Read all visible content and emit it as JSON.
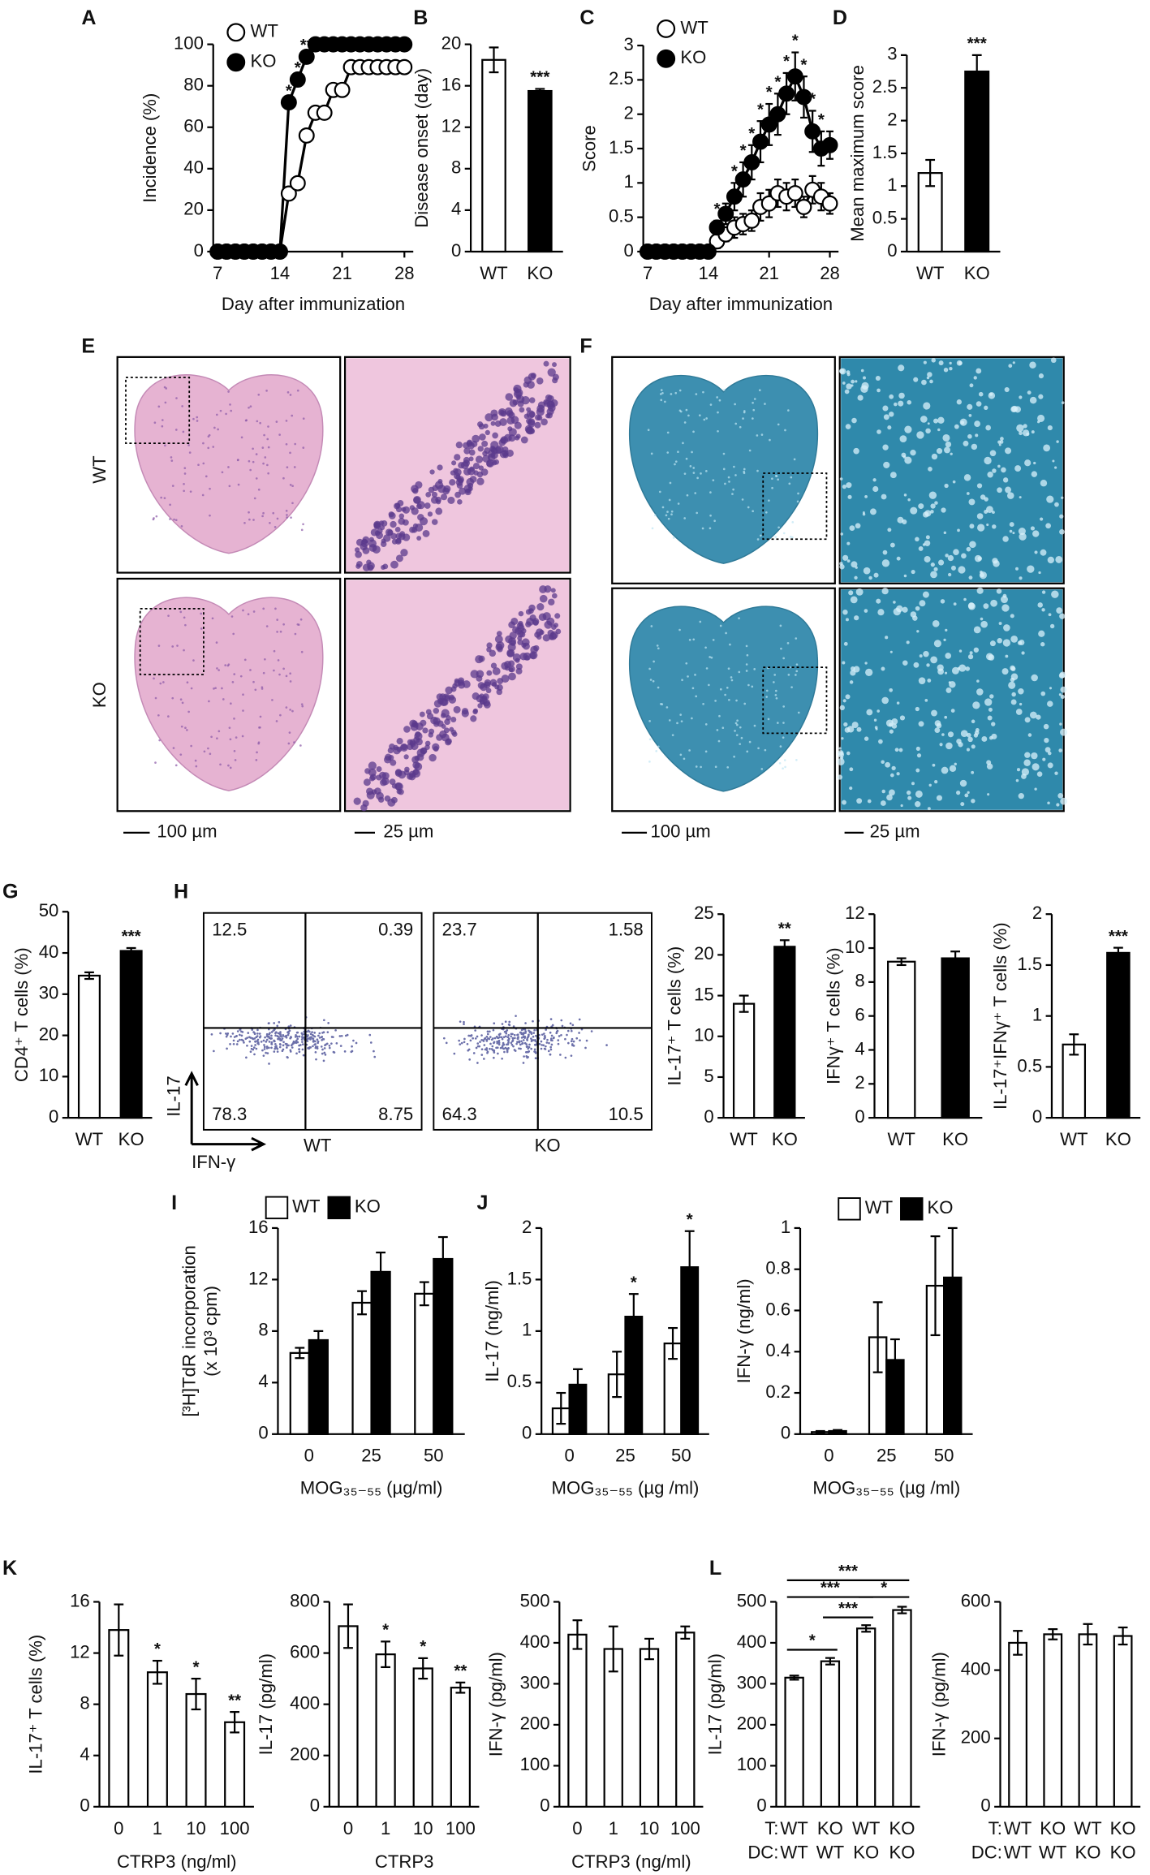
{
  "chart_data": [
    {
      "type": "line",
      "panel": "A",
      "ylabel": "Incidence (%)",
      "xlabel": "Day after immunization",
      "x": [
        7,
        8,
        9,
        10,
        11,
        12,
        13,
        14,
        15,
        16,
        17,
        18,
        19,
        20,
        21,
        22,
        23,
        24,
        25,
        26,
        27,
        28
      ],
      "xlim": [
        6.5,
        29
      ],
      "xticks": [
        7,
        14,
        21,
        28
      ],
      "ylim": [
        0,
        100
      ],
      "yticks": [
        0,
        20,
        40,
        60,
        80,
        100
      ],
      "series": [
        {
          "name": "WT",
          "color": "#ffffff",
          "values": [
            0,
            0,
            0,
            0,
            0,
            0,
            0,
            0,
            28,
            33,
            56,
            67,
            67,
            78,
            78,
            89,
            89,
            89,
            89,
            89,
            89,
            89
          ]
        },
        {
          "name": "KO",
          "color": "#000000",
          "values": [
            0,
            0,
            0,
            0,
            0,
            0,
            0,
            0,
            72,
            83,
            94,
            100,
            100,
            100,
            100,
            100,
            100,
            100,
            100,
            100,
            100,
            100
          ],
          "significance": [
            null,
            null,
            null,
            null,
            null,
            null,
            null,
            null,
            "*",
            "*",
            "**",
            null,
            null,
            null,
            null,
            null,
            null,
            null,
            null,
            null,
            null,
            null
          ]
        }
      ]
    },
    {
      "type": "bar",
      "panel": "B",
      "ylabel": "Disease onset (day)",
      "categories": [
        "WT",
        "KO"
      ],
      "values": [
        18.5,
        15.5
      ],
      "errors": [
        1.2,
        0.2
      ],
      "colors": [
        "#ffffff",
        "#000000"
      ],
      "significance": [
        null,
        "***"
      ],
      "ylim": [
        0,
        20
      ],
      "yticks": [
        0,
        4,
        8,
        12,
        16,
        20
      ]
    },
    {
      "type": "line",
      "panel": "C",
      "ylabel": "Score",
      "xlabel": "Day after immunization",
      "x": [
        7,
        8,
        9,
        10,
        11,
        12,
        13,
        14,
        15,
        16,
        17,
        18,
        19,
        20,
        21,
        22,
        23,
        24,
        25,
        26,
        27,
        28
      ],
      "xlim": [
        6.5,
        29
      ],
      "xticks": [
        7,
        14,
        21,
        28
      ],
      "ylim": [
        0,
        3
      ],
      "yticks": [
        0,
        0.5,
        1,
        1.5,
        2,
        2.5,
        3
      ],
      "series": [
        {
          "name": "WT",
          "color": "#ffffff",
          "values": [
            0,
            0,
            0,
            0,
            0,
            0,
            0,
            0,
            0.15,
            0.25,
            0.35,
            0.4,
            0.45,
            0.65,
            0.7,
            0.85,
            0.8,
            0.85,
            0.65,
            0.9,
            0.8,
            0.7
          ],
          "errors": [
            0,
            0,
            0,
            0,
            0,
            0,
            0,
            0,
            0.1,
            0.1,
            0.15,
            0.15,
            0.15,
            0.2,
            0.2,
            0.2,
            0.2,
            0.2,
            0.15,
            0.2,
            0.2,
            0.15
          ]
        },
        {
          "name": "KO",
          "color": "#000000",
          "values": [
            0,
            0,
            0,
            0,
            0,
            0,
            0,
            0,
            0.35,
            0.55,
            0.8,
            1.05,
            1.3,
            1.6,
            1.85,
            2,
            2.3,
            2.55,
            2.25,
            1.75,
            1.5,
            1.55
          ],
          "errors": [
            0,
            0,
            0,
            0,
            0,
            0,
            0,
            0,
            0.1,
            0.15,
            0.2,
            0.25,
            0.25,
            0.3,
            0.3,
            0.3,
            0.3,
            0.35,
            0.3,
            0.3,
            0.25,
            0.2
          ],
          "significance": [
            null,
            null,
            null,
            null,
            null,
            null,
            null,
            null,
            "*",
            null,
            "*",
            "*",
            "*",
            "*",
            "*",
            "*",
            "*",
            "*",
            "*",
            "*",
            "*",
            null
          ]
        }
      ]
    },
    {
      "type": "bar",
      "panel": "D",
      "ylabel": "Mean maximum score",
      "categories": [
        "WT",
        "KO"
      ],
      "values": [
        1.2,
        2.75
      ],
      "errors": [
        0.2,
        0.25
      ],
      "colors": [
        "#ffffff",
        "#000000"
      ],
      "significance": [
        null,
        "***"
      ],
      "ylim": [
        0,
        3
      ],
      "yticks": [
        0,
        0.5,
        1,
        1.5,
        2,
        2.5,
        3
      ]
    },
    {
      "type": "bar",
      "panel": "G",
      "ylabel": "CD4⁺ T cells (%)",
      "categories": [
        "WT",
        "KO"
      ],
      "values": [
        34.5,
        40.5
      ],
      "errors": [
        0.8,
        0.7
      ],
      "colors": [
        "#ffffff",
        "#000000"
      ],
      "significance": [
        null,
        "***"
      ],
      "ylim": [
        0,
        50
      ],
      "yticks": [
        0,
        10,
        20,
        30,
        40,
        50
      ]
    },
    {
      "type": "bar",
      "ylabel": "IL-17⁺ T cells (%)",
      "categories": [
        "WT",
        "KO"
      ],
      "values": [
        14,
        21
      ],
      "errors": [
        1,
        0.8
      ],
      "colors": [
        "#ffffff",
        "#000000"
      ],
      "significance": [
        null,
        "**"
      ],
      "ylim": [
        0,
        25
      ],
      "yticks": [
        0,
        5,
        10,
        15,
        20,
        25
      ]
    },
    {
      "type": "bar",
      "ylabel": "IFNγ⁺ T cells (%)",
      "categories": [
        "WT",
        "KO"
      ],
      "values": [
        9.2,
        9.4
      ],
      "errors": [
        0.2,
        0.4
      ],
      "colors": [
        "#ffffff",
        "#000000"
      ],
      "ylim": [
        0,
        12
      ],
      "yticks": [
        0,
        2,
        4,
        6,
        8,
        10,
        12
      ]
    },
    {
      "type": "bar",
      "ylabel": "IL-17⁺IFNγ⁺ T cells (%)",
      "categories": [
        "WT",
        "KO"
      ],
      "values": [
        0.72,
        1.62
      ],
      "errors": [
        0.1,
        0.05
      ],
      "colors": [
        "#ffffff",
        "#000000"
      ],
      "significance": [
        null,
        "***"
      ],
      "ylim": [
        0,
        2
      ],
      "yticks": [
        0,
        0.5,
        1,
        1.5,
        2
      ]
    },
    {
      "type": "bar",
      "panel": "I",
      "ylabel": [
        "[³H]TdR incorporation",
        "(x 10³ cpm)"
      ],
      "xlabel": "MOG₃₅₋₅₅ (µg/ml)",
      "categories": [
        "0",
        "25",
        "50"
      ],
      "ylim": [
        0,
        16
      ],
      "yticks": [
        0,
        4,
        8,
        12,
        16
      ],
      "series": [
        {
          "name": "WT",
          "color": "#ffffff",
          "values": [
            6.3,
            10.2,
            10.9
          ],
          "errors": [
            0.4,
            0.9,
            0.9
          ]
        },
        {
          "name": "KO",
          "color": "#000000",
          "values": [
            7.3,
            12.6,
            13.6
          ],
          "errors": [
            0.7,
            1.5,
            1.7
          ]
        }
      ]
    },
    {
      "type": "bar",
      "panel": "J",
      "ylabel": "IL-17 (ng/ml)",
      "xlabel": "MOG₃₅₋₅₅ (µg /ml)",
      "categories": [
        "0",
        "25",
        "50"
      ],
      "ylim": [
        0,
        2
      ],
      "yticks": [
        0,
        0.5,
        1,
        1.5,
        2
      ],
      "series": [
        {
          "name": "WT",
          "color": "#ffffff",
          "values": [
            0.25,
            0.58,
            0.88
          ],
          "errors": [
            0.15,
            0.22,
            0.15
          ]
        },
        {
          "name": "KO",
          "color": "#000000",
          "values": [
            0.48,
            1.14,
            1.62
          ],
          "errors": [
            0.15,
            0.22,
            0.35
          ],
          "significance": [
            null,
            "*",
            "*"
          ]
        }
      ]
    },
    {
      "type": "bar",
      "ylabel": "IFN-γ (ng/ml)",
      "xlabel": "MOG₃₅₋₅₅ (µg /ml)",
      "categories": [
        "0",
        "25",
        "50"
      ],
      "ylim": [
        0,
        1
      ],
      "yticks": [
        0,
        0.2,
        0.4,
        0.6,
        0.8,
        1
      ],
      "series": [
        {
          "name": "WT",
          "color": "#ffffff",
          "values": [
            0.01,
            0.47,
            0.72
          ],
          "errors": [
            0.005,
            0.17,
            0.24
          ]
        },
        {
          "name": "KO",
          "color": "#000000",
          "values": [
            0.015,
            0.36,
            0.76
          ],
          "errors": [
            0.005,
            0.1,
            0.24
          ]
        }
      ]
    },
    {
      "type": "bar",
      "panel": "K",
      "ylabel": "IL-17⁺ T cells (%)",
      "xlabel": "CTRP3 (ng/ml)",
      "categories": [
        "0",
        "1",
        "10",
        "100"
      ],
      "values": [
        13.8,
        10.5,
        8.8,
        6.6
      ],
      "errors": [
        2,
        0.9,
        1.2,
        0.8
      ],
      "color": "#ffffff",
      "significance": [
        null,
        "*",
        "*",
        "**"
      ],
      "ylim": [
        0,
        16
      ],
      "yticks": [
        0,
        4,
        8,
        12,
        16
      ]
    },
    {
      "type": "bar",
      "ylabel": "IL-17 (pg/ml)",
      "xlabel": "CTRP3",
      "categories": [
        "0",
        "1",
        "10",
        "100"
      ],
      "values": [
        705,
        595,
        540,
        465
      ],
      "errors": [
        85,
        50,
        40,
        20
      ],
      "color": "#ffffff",
      "significance": [
        null,
        "*",
        "*",
        "**"
      ],
      "ylim": [
        0,
        800
      ],
      "yticks": [
        0,
        200,
        400,
        600,
        800
      ]
    },
    {
      "type": "bar",
      "ylabel": "IFN-γ (pg/ml)",
      "xlabel": "CTRP3 (ng/ml)",
      "categories": [
        "0",
        "1",
        "10",
        "100"
      ],
      "values": [
        420,
        385,
        385,
        425
      ],
      "errors": [
        35,
        55,
        25,
        15
      ],
      "color": "#ffffff",
      "ylim": [
        0,
        500
      ],
      "yticks": [
        0,
        100,
        200,
        300,
        400,
        500
      ]
    },
    {
      "type": "bar",
      "panel": "L",
      "ylabel": "IL-17 (pg/ml)",
      "categories": [
        "WT",
        "KO",
        "WT",
        "KO"
      ],
      "categories_dc": [
        "WT",
        "WT",
        "KO",
        "KO"
      ],
      "row_labels": [
        "T:",
        "DC:"
      ],
      "values": [
        315,
        355,
        435,
        480
      ],
      "errors": [
        5,
        8,
        8,
        8
      ],
      "color": "#ffffff",
      "comparisons": [
        {
          "bars": [
            0,
            3
          ],
          "label": "***"
        },
        {
          "bars": [
            0,
            2
          ],
          "label": "***"
        },
        {
          "bars": [
            2,
            3
          ],
          "label": "*"
        },
        {
          "bars": [
            1,
            2
          ],
          "label": "***"
        },
        {
          "bars": [
            0,
            1
          ],
          "label": "*"
        }
      ],
      "ylim": [
        0,
        500
      ],
      "yticks": [
        0,
        100,
        200,
        300,
        400,
        500
      ]
    },
    {
      "type": "bar",
      "ylabel": "IFN-γ (pg/ml)",
      "categories": [
        "WT",
        "KO",
        "WT",
        "KO"
      ],
      "categories_dc": [
        "WT",
        "WT",
        "KO",
        "KO"
      ],
      "row_labels": [
        "T:",
        "DC:"
      ],
      "values": [
        480,
        505,
        505,
        500
      ],
      "errors": [
        35,
        15,
        30,
        25
      ],
      "color": "#ffffff",
      "ylim": [
        0,
        600
      ],
      "yticks": [
        0,
        200,
        400,
        600
      ]
    }
  ],
  "histology": [
    {
      "panel": "E",
      "rows": [
        "WT",
        "KO"
      ],
      "scale_bars": [
        "100 µm",
        "25 µm"
      ]
    },
    {
      "panel": "F",
      "scale_bars": [
        "100 µm",
        "25 µm"
      ]
    }
  ],
  "flow_plots": {
    "panel": "H",
    "y_axis": "IL-17",
    "x_axis": "IFN-γ",
    "plots": [
      {
        "label": "WT",
        "quadrants": [
          12.5,
          0.39,
          78.3,
          8.75
        ]
      },
      {
        "label": "KO",
        "quadrants": [
          23.7,
          1.58,
          64.3,
          10.5
        ]
      }
    ]
  }
}
